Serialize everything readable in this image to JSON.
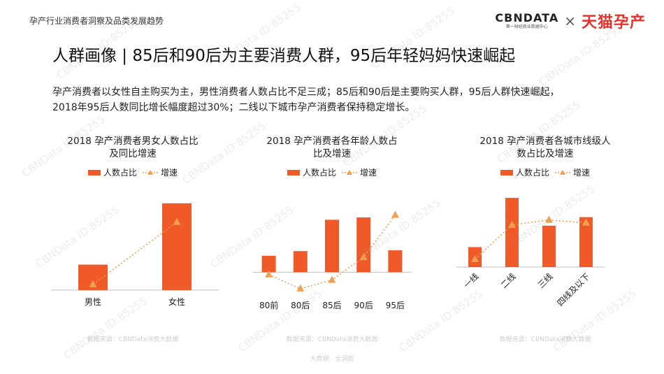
{
  "header": {
    "title": "孕产行业消费者洞察及品类发展趋势",
    "brand_cbn": "CBNDATA",
    "brand_cbn_sub": "第一财经商业数据中心",
    "brand_times": "×",
    "brand_tmall": "天猫孕产"
  },
  "main": {
    "title": "人群画像 | 85后和90后为主要消费人群，95后年轻妈妈快速崛起",
    "summary_line1": "孕产消费者以女性自主购买为主，男性消费者人数占比不足三成；85后和90后是主要购买人群，95后人群快速崛起，",
    "summary_line2": "2018年95后人数同比增长幅度超过30%；二线以下城市孕产消费者保持稳定增长。"
  },
  "legend": {
    "bar": "人数占比",
    "line": "增速"
  },
  "source": "数据来源：CBNData消费大数据",
  "footer": "大数据 · 全洞察",
  "watermark": "CBNData ID:85255",
  "colors": {
    "bar": "#f05a28",
    "line": "#f0a050",
    "axis": "#bfbfbf"
  },
  "chart_data": [
    {
      "type": "bar",
      "title_line1": "2018 孕产消费者男女人数占比",
      "title_line2": "及同比增速",
      "categories": [
        "男性",
        "女性"
      ],
      "series": [
        {
          "name": "人数占比",
          "values": [
            0.27,
            0.92
          ]
        },
        {
          "name": "增速",
          "type": "line",
          "values": [
            0.06,
            0.72
          ]
        }
      ],
      "ylim": [
        0,
        1
      ],
      "xlabel_rotation": 0
    },
    {
      "type": "bar",
      "title_line1": "2018 孕产消费者各年龄人数占",
      "title_line2": "比及增速",
      "categories": [
        "80前",
        "80后",
        "85后",
        "90后",
        "95后"
      ],
      "series": [
        {
          "name": "人数占比",
          "values": [
            0.21,
            0.27,
            0.67,
            0.7,
            0.28
          ]
        },
        {
          "name": "增速",
          "type": "line",
          "values": [
            -0.03,
            -0.21,
            -0.1,
            0.19,
            0.73
          ]
        }
      ],
      "ylim": [
        -0.3,
        0.95
      ],
      "xlabel_rotation": 0
    },
    {
      "type": "bar",
      "title_line1": "2018 孕产消费者各城市线级人",
      "title_line2": "数占比及增速",
      "categories": [
        "一线",
        "二线",
        "三线",
        "四线及以下"
      ],
      "series": [
        {
          "name": "人数占比",
          "values": [
            0.28,
            0.97,
            0.58,
            0.7
          ]
        },
        {
          "name": "增速",
          "type": "line",
          "values": [
            0.11,
            0.59,
            0.66,
            0.62
          ]
        }
      ],
      "ylim": [
        0,
        1
      ],
      "xlabel_rotation": -45
    }
  ]
}
